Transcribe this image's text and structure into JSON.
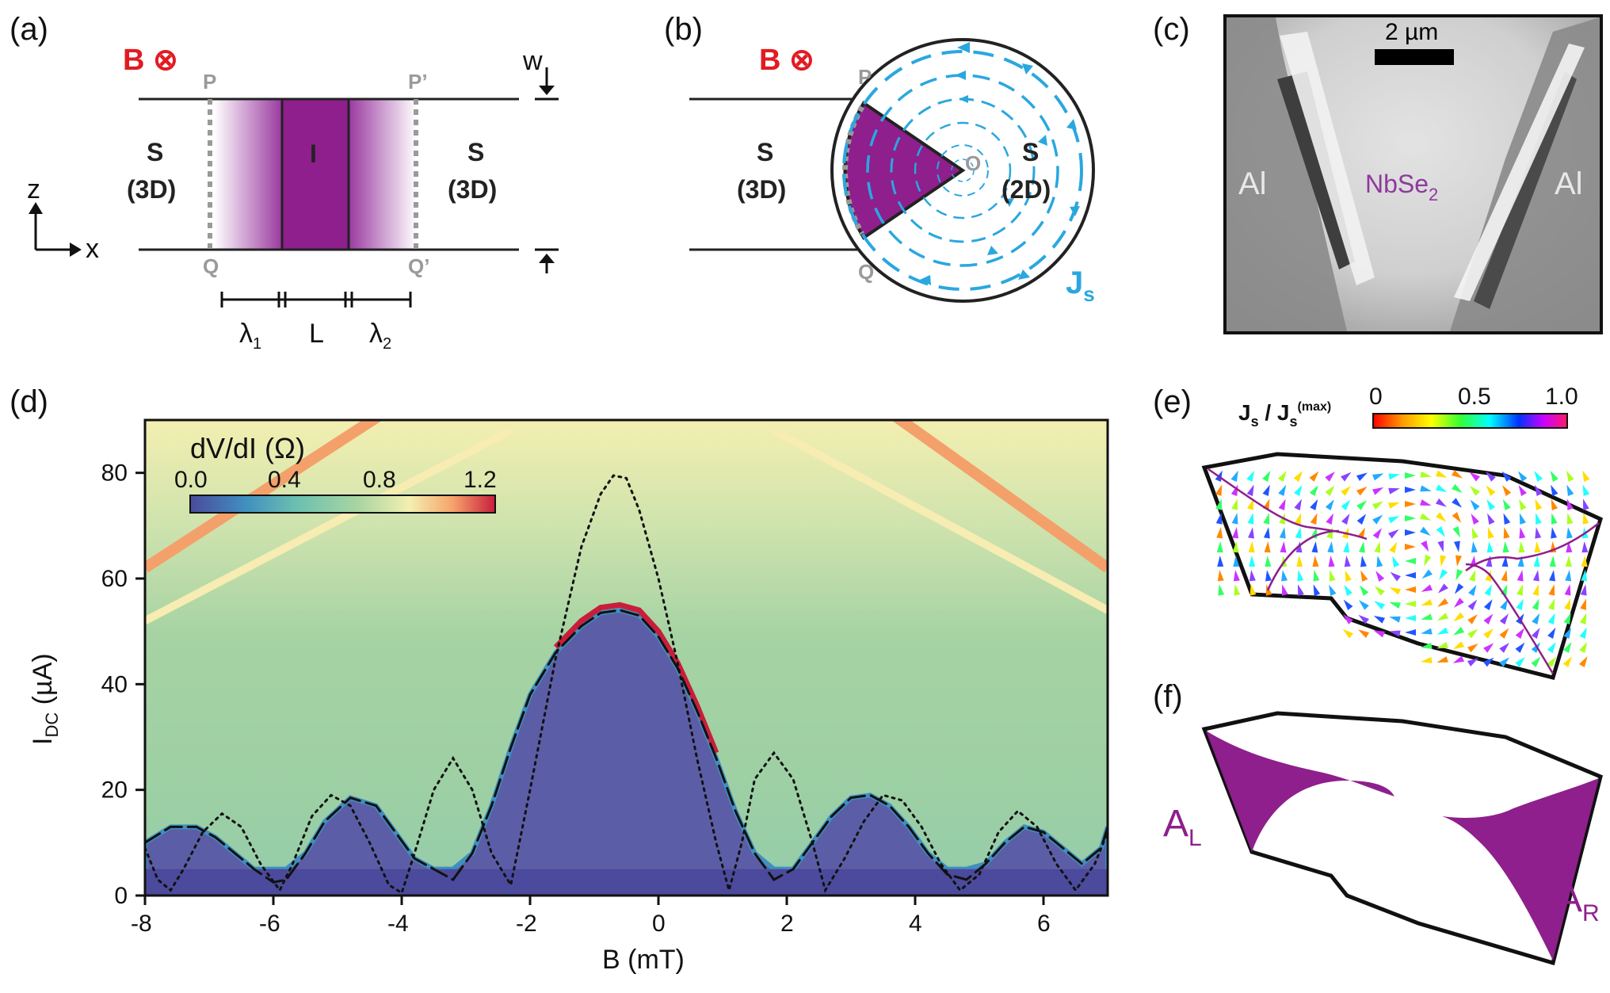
{
  "panels": {
    "a": {
      "label": "(a)",
      "field": "B ⊗",
      "left_region": [
        "S",
        "(3D)"
      ],
      "right_region": [
        "S",
        "(3D)"
      ],
      "insulator": "I",
      "points": [
        "P",
        "P’",
        "Q",
        "Q’"
      ],
      "width_label": "w",
      "axis_z": "z",
      "axis_x": "x",
      "lengths": [
        "λ",
        "1",
        "L",
        "λ",
        "2"
      ]
    },
    "b": {
      "label": "(b)",
      "field": "B ⊗",
      "left_region": [
        "S",
        "(3D)"
      ],
      "right_region": [
        "S",
        "(2D)"
      ],
      "points": [
        "P",
        "Q",
        "O"
      ],
      "current_label": [
        "J",
        "s"
      ]
    },
    "c": {
      "label": "(c)",
      "scalebar": "2 µm",
      "left_contact": "Al",
      "right_contact": "Al",
      "flake": [
        "NbSe",
        "2"
      ]
    },
    "d": {
      "label": "(d)",
      "colorbar_title": "dV/dI (Ω)",
      "colorbar_ticks": [
        "0.0",
        "0.4",
        "0.8",
        "1.2"
      ]
    },
    "e": {
      "label": "(e)",
      "colorbar_title": [
        "J",
        "s",
        " / J",
        "s",
        "(max)"
      ],
      "colorbar_ticks": [
        "0",
        "0.5",
        "1.0"
      ]
    },
    "f": {
      "label": "(f)",
      "area_left": [
        "A",
        "L"
      ],
      "area_right": [
        "A",
        "R"
      ]
    }
  },
  "chart_data": {
    "type": "heatmap",
    "title": "",
    "xlabel": "B (mT)",
    "ylabel": [
      "I",
      "DC",
      " (µA)"
    ],
    "xlim": [
      -8,
      7
    ],
    "ylim": [
      0,
      90
    ],
    "xticks": [
      -8,
      -6,
      -4,
      -2,
      0,
      2,
      4,
      6
    ],
    "yticks": [
      0,
      20,
      40,
      60,
      80
    ],
    "colorscale": [
      "#4b4a9c",
      "#3f8fc0",
      "#6cc0b0",
      "#a9d5a2",
      "#f3efb0",
      "#f6a36b",
      "#c81e3c"
    ],
    "colorbar_range": [
      0,
      1.3
    ],
    "series": [
      {
        "style": "dashed",
        "x": [
          -8.0,
          -7.6,
          -7.2,
          -6.9,
          -6.6,
          -6.3,
          -6.0,
          -5.8,
          -5.5,
          -5.2,
          -4.8,
          -4.4,
          -4.1,
          -3.8,
          -3.5,
          -3.2,
          -2.9,
          -2.6,
          -2.3,
          -2.0,
          -1.6,
          -1.2,
          -0.9,
          -0.6,
          -0.3,
          0.0,
          0.3,
          0.6,
          0.9,
          1.2,
          1.5,
          1.8,
          2.1,
          2.4,
          2.7,
          3.0,
          3.3,
          3.6,
          3.9,
          4.2,
          4.5,
          4.8,
          5.1,
          5.4,
          5.7,
          6.0,
          6.3,
          6.6,
          6.9,
          7.0
        ],
        "y": [
          10,
          13,
          13,
          11,
          8,
          5,
          2.5,
          3,
          8,
          14,
          18.5,
          17,
          12,
          7,
          5,
          3,
          8,
          17,
          28,
          38,
          46,
          51,
          53.5,
          54,
          53,
          49,
          43,
          35,
          26,
          16,
          8,
          3,
          5,
          10,
          15,
          18.5,
          19,
          17,
          13,
          8,
          4,
          3,
          6,
          10,
          13,
          12,
          9,
          6,
          9,
          13
        ]
      },
      {
        "style": "dotted",
        "x": [
          -8.0,
          -7.8,
          -7.6,
          -7.4,
          -7.1,
          -6.8,
          -6.5,
          -6.2,
          -5.9,
          -5.7,
          -5.4,
          -5.1,
          -4.8,
          -4.5,
          -4.2,
          -4.0,
          -3.8,
          -3.5,
          -3.2,
          -2.9,
          -2.6,
          -2.3,
          -2.0,
          -1.6,
          -1.2,
          -0.9,
          -0.7,
          -0.5,
          -0.3,
          0.0,
          0.3,
          0.6,
          0.9,
          1.1,
          1.3,
          1.5,
          1.8,
          2.1,
          2.4,
          2.6,
          2.9,
          3.2,
          3.5,
          3.8,
          4.1,
          4.4,
          4.7,
          5.0,
          5.3,
          5.6,
          5.9,
          6.2,
          6.5,
          6.8,
          7.0
        ],
        "y": [
          9,
          3,
          1,
          5,
          12,
          15.5,
          13,
          6,
          1,
          6,
          15,
          19,
          17,
          10,
          2,
          0.5,
          8,
          20,
          26,
          20,
          8,
          2,
          20,
          45,
          66,
          76,
          79.5,
          79,
          73,
          60,
          44,
          26,
          10,
          1,
          10,
          22,
          27,
          22,
          10,
          1,
          7,
          14,
          19,
          18,
          13,
          6,
          1,
          4,
          12,
          16,
          13,
          6,
          1,
          6,
          12
        ]
      }
    ]
  }
}
